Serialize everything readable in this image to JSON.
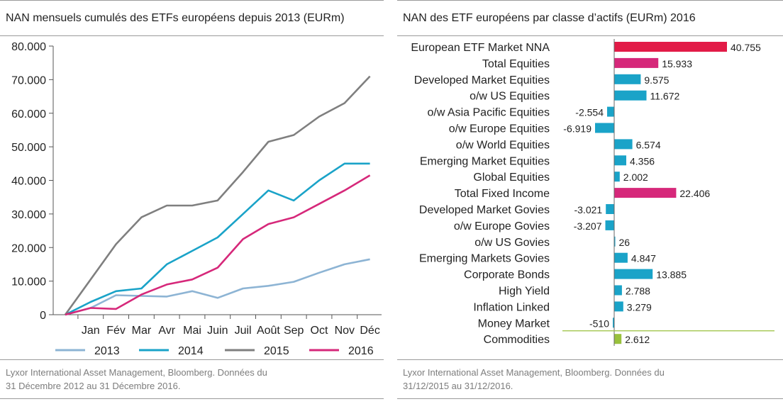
{
  "left_panel": {
    "title": "NAN mensuels cumulés des ETFs européens depuis 2013 (EURm)",
    "source_line1": "Lyxor International Asset Management, Bloomberg. Données du",
    "source_line2": "31 Décembre 2012 au 31 Décembre 2016."
  },
  "right_panel": {
    "title": "NAN des ETF européens par classe d’actifs (EURm) 2016",
    "source_line1": "Lyxor International Asset Management, Bloomberg. Données du",
    "source_line2": "31/12/2015 au 31/12/2016."
  },
  "chart_data": [
    {
      "type": "line",
      "title": "NAN mensuels cumulés des ETFs européens depuis 2013 (EURm)",
      "x": [
        "",
        "Jan",
        "Fév",
        "Mar",
        "Avr",
        "Mai",
        "Juin",
        "Juil",
        "Août",
        "Sep",
        "Oct",
        "Nov",
        "Déc"
      ],
      "ylim": [
        0,
        80000
      ],
      "yticks": [
        0,
        10000,
        20000,
        30000,
        40000,
        50000,
        60000,
        70000,
        80000
      ],
      "ytick_labels": [
        "0",
        "10.000",
        "20.000",
        "30.000",
        "40.000",
        "50.000",
        "60.000",
        "70.000",
        "80.000"
      ],
      "grid": false,
      "legend": "bottom",
      "series": [
        {
          "name": "2013",
          "color": "#8db4d4",
          "values": [
            0,
            2000,
            5800,
            5600,
            5400,
            7000,
            5000,
            7800,
            8600,
            9800,
            12500,
            15000,
            16500
          ]
        },
        {
          "name": "2014",
          "color": "#1aa3c8",
          "values": [
            0,
            3800,
            7000,
            7800,
            15000,
            19000,
            23000,
            30000,
            37000,
            34000,
            40000,
            45000,
            45000
          ]
        },
        {
          "name": "2015",
          "color": "#7f7f7f",
          "values": [
            0,
            10500,
            21000,
            29000,
            32500,
            32500,
            34000,
            42500,
            51500,
            53500,
            59000,
            63000,
            71000
          ]
        },
        {
          "name": "2016",
          "color": "#d6287a",
          "values": [
            0,
            2000,
            1700,
            6000,
            9000,
            10500,
            14000,
            22500,
            27000,
            29000,
            33000,
            37000,
            41500
          ]
        }
      ]
    },
    {
      "type": "bar",
      "orientation": "horizontal",
      "title": "NAN des ETF européens par classe d’actifs (EURm) 2016",
      "xlim": [
        -12000,
        41000
      ],
      "grid": false,
      "categories": [
        "European ETF Market NNA",
        "Total Equities",
        "Developed Market Equities",
        "o/w US Equities",
        "o/w Asia Pacific Equities",
        "o/w Europe Equities",
        "o/w World Equities",
        "Emerging Market Equities",
        "Global Equities",
        "Total Fixed Income",
        "Developed Market Govies",
        "o/w Europe Govies",
        "o/w US Govies",
        "Emerging Markets Govies",
        "Corporate Bonds",
        "High Yield",
        "Inflation Linked",
        "Money Market",
        "Commodities"
      ],
      "values": [
        40755,
        15933,
        9575,
        11672,
        -2554,
        -6919,
        6574,
        4356,
        2002,
        22406,
        -3021,
        -3207,
        26,
        4847,
        13885,
        2788,
        3279,
        -510,
        2612
      ],
      "value_labels": [
        "40.755",
        "15.933",
        "9.575",
        "11.672",
        "-2.554",
        "-6.919",
        "6.574",
        "4.356",
        "2.002",
        "22.406",
        "-3.021",
        "-3.207",
        "26",
        "4.847",
        "13.885",
        "2.788",
        "3.279",
        "-510",
        "2.612"
      ],
      "bar_colors": [
        "#e21b47",
        "#d6287a",
        "#1aa3c8",
        "#1aa3c8",
        "#1aa3c8",
        "#1aa3c8",
        "#1aa3c8",
        "#1aa3c8",
        "#1aa3c8",
        "#d6287a",
        "#1aa3c8",
        "#1aa3c8",
        "#1aa3c8",
        "#1aa3c8",
        "#1aa3c8",
        "#1aa3c8",
        "#1aa3c8",
        "#1aa3c8",
        "#99c13c"
      ],
      "separator_color": "#99c13c"
    }
  ]
}
